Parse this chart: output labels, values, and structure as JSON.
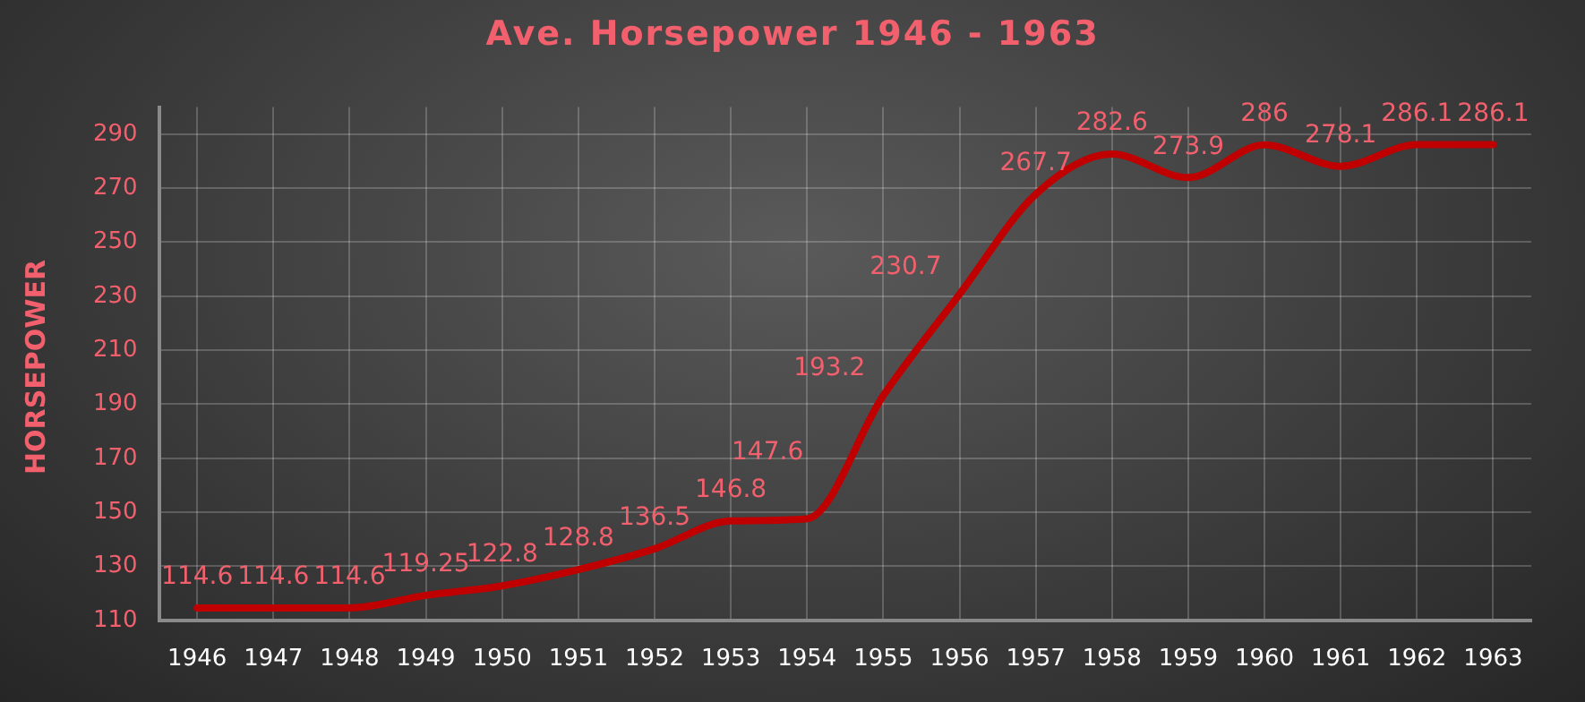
{
  "chart_data": {
    "type": "line",
    "title": "Ave. Horsepower 1946 - 1963",
    "ylabel": "HORSEPOWER",
    "categories": [
      "1946",
      "1947",
      "1948",
      "1949",
      "1950",
      "1951",
      "1952",
      "1953",
      "1954",
      "1955",
      "1956",
      "1957",
      "1958",
      "1959",
      "1960",
      "1961",
      "1962",
      "1963"
    ],
    "series": [
      {
        "color": "#c00000",
        "values": [
          114.6,
          114.6,
          114.6,
          119.25,
          122.8,
          128.8,
          136.5,
          146.8,
          147.6,
          193.2,
          230.7,
          267.7,
          282.6,
          273.9,
          286,
          278.1,
          286.1,
          286.1
        ]
      }
    ],
    "ylim": [
      110,
      300
    ],
    "yticks": [
      110,
      130,
      150,
      170,
      190,
      210,
      230,
      250,
      270,
      290
    ],
    "grid": true,
    "legend": false,
    "marker": "none",
    "line_style": "solid",
    "data_labels": true
  }
}
